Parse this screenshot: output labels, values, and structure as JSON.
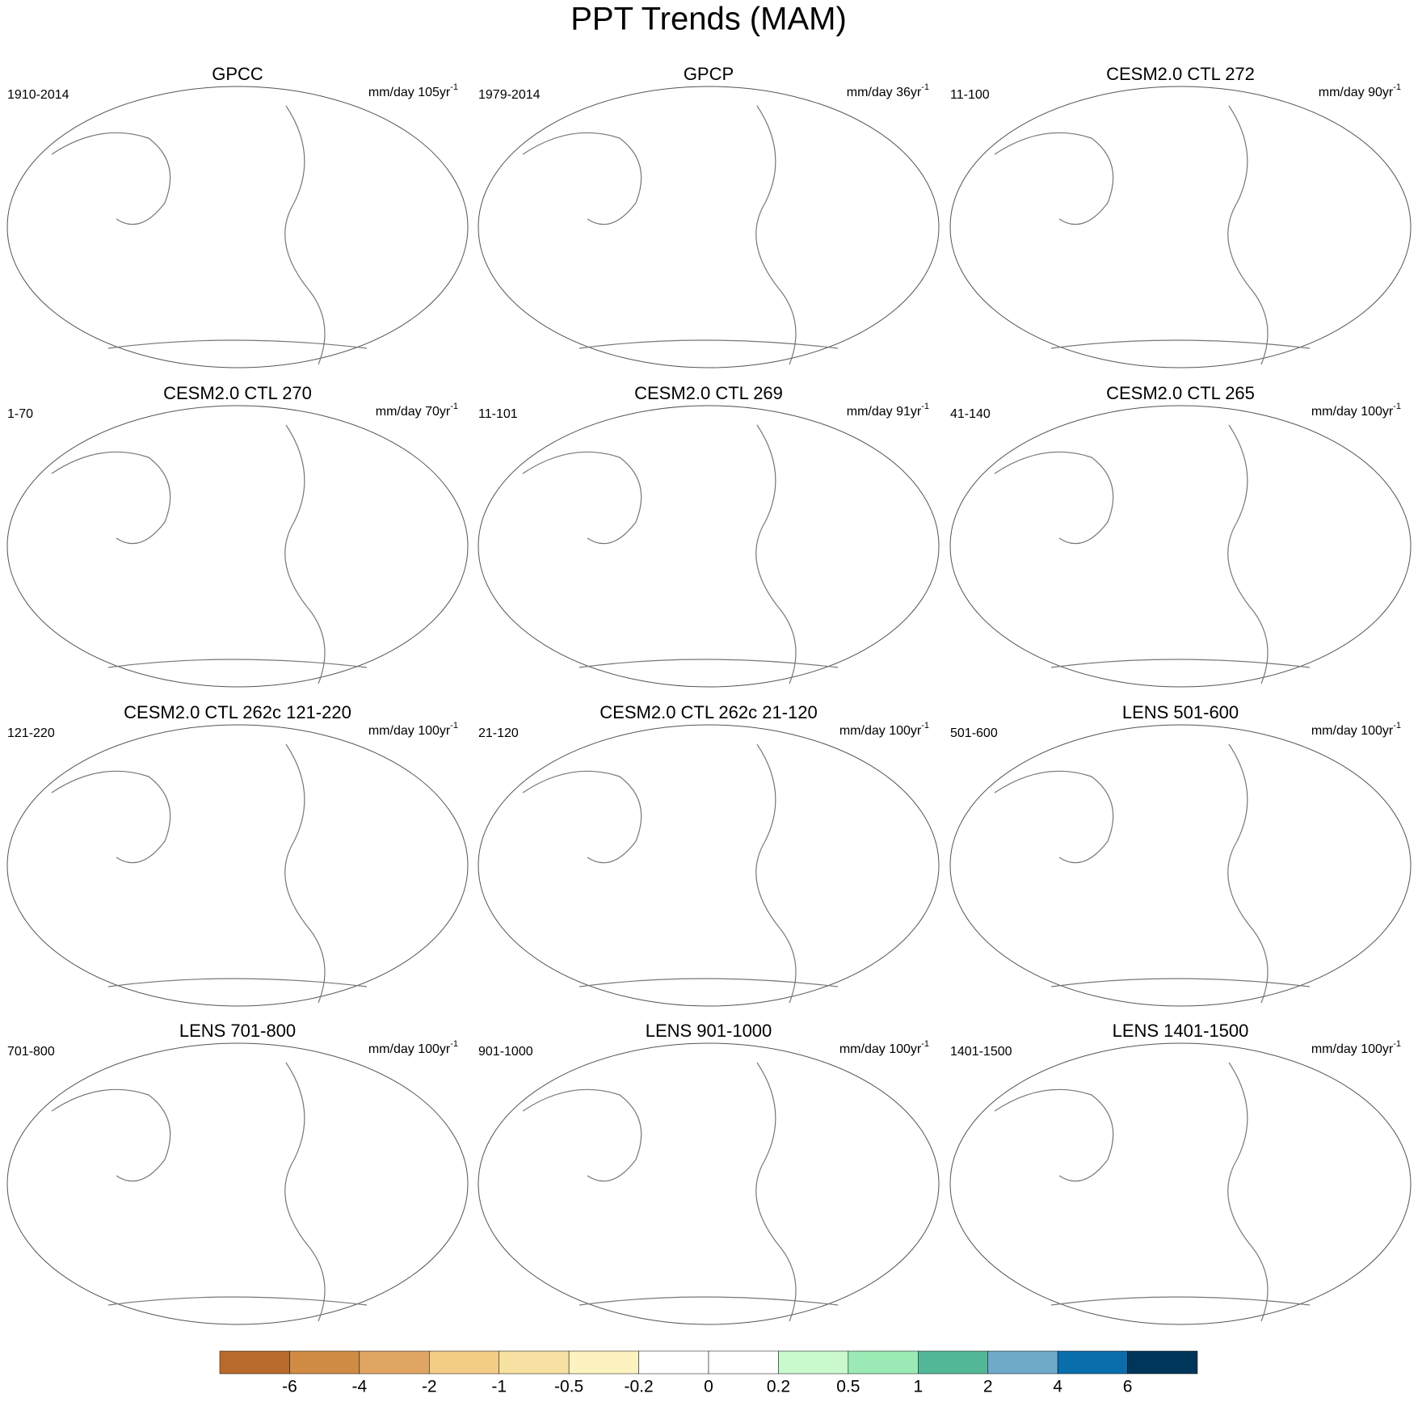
{
  "title": "PPT Trends (MAM)",
  "panels": [
    {
      "title": "GPCC",
      "period": "1910-2014",
      "units": "mm/day 105yr",
      "units_exponent": "-1"
    },
    {
      "title": "GPCP",
      "period": "1979-2014",
      "units": "mm/day 36yr",
      "units_exponent": "-1"
    },
    {
      "title": "CESM2.0 CTL 272",
      "period": "11-100",
      "units": "mm/day 90yr",
      "units_exponent": "-1"
    },
    {
      "title": "CESM2.0 CTL 270",
      "period": "1-70",
      "units": "mm/day 70yr",
      "units_exponent": "-1"
    },
    {
      "title": "CESM2.0 CTL 269",
      "period": "11-101",
      "units": "mm/day 91yr",
      "units_exponent": "-1"
    },
    {
      "title": "CESM2.0 CTL 265",
      "period": "41-140",
      "units": "mm/day 100yr",
      "units_exponent": "-1"
    },
    {
      "title": "CESM2.0 CTL 262c 121-220",
      "period": "121-220",
      "units": "mm/day 100yr",
      "units_exponent": "-1"
    },
    {
      "title": "CESM2.0 CTL 262c 21-120",
      "period": "21-120",
      "units": "mm/day 100yr",
      "units_exponent": "-1"
    },
    {
      "title": "LENS 501-600",
      "period": "501-600",
      "units": "mm/day 100yr",
      "units_exponent": "-1"
    },
    {
      "title": "LENS 701-800",
      "period": "701-800",
      "units": "mm/day 100yr",
      "units_exponent": "-1"
    },
    {
      "title": "LENS 901-1000",
      "period": "901-1000",
      "units": "mm/day 100yr",
      "units_exponent": "-1"
    },
    {
      "title": "LENS 1401-1500",
      "period": "1401-1500",
      "units": "mm/day 100yr",
      "units_exponent": "-1"
    }
  ],
  "colorbar": {
    "colors": [
      "#b86a2c",
      "#d08b45",
      "#e1a563",
      "#f3cc86",
      "#f7e1a3",
      "#fdf3c0",
      "#ffffff",
      "#ffffff",
      "#c9f9cd",
      "#9beab5",
      "#52b797",
      "#71a9c9",
      "#0a6ead",
      "#00365a"
    ],
    "labels": [
      "-6",
      "-4",
      "-2",
      "-1",
      "-0.5",
      "-0.2",
      "0",
      "0.2",
      "0.5",
      "1",
      "2",
      "4",
      "6"
    ]
  }
}
